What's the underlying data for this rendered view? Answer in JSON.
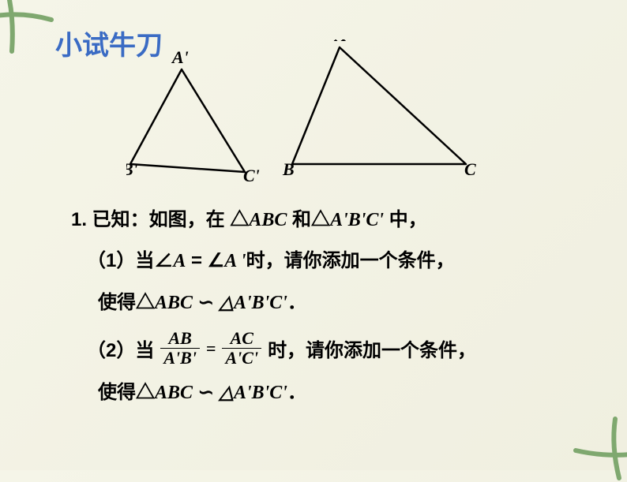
{
  "title": "小试牛刀",
  "triangles": {
    "small": {
      "labels": {
        "A": "A'",
        "B": "B'",
        "C": "C'"
      },
      "points": {
        "A": [
          70,
          38
        ],
        "B": [
          5,
          158
        ],
        "C": [
          150,
          168
        ]
      },
      "labelPos": {
        "A": [
          58,
          30
        ],
        "B": [
          -6,
          172
        ],
        "C": [
          148,
          180
        ]
      }
    },
    "large": {
      "labels": {
        "A": "A",
        "B": "B",
        "C": "C"
      },
      "points": {
        "A": [
          270,
          10
        ],
        "B": [
          210,
          158
        ],
        "C": [
          430,
          158
        ]
      },
      "labelPos": {
        "A": [
          264,
          2
        ],
        "B": [
          198,
          172
        ],
        "C": [
          428,
          172
        ]
      }
    },
    "stroke": "#000000",
    "strokeWidth": 2.5,
    "labelFontSize": 22
  },
  "problem": {
    "intro_prefix": "1. 已知：如图，在 △",
    "intro_abc": "ABC",
    "intro_mid": " 和△",
    "intro_apbpcp": "A'B'C'",
    "intro_suffix": " 中，",
    "q1_prefix": "（1）当∠",
    "q1_aeq": "A",
    "q1_mid": " = ∠",
    "q1_ap": "A '",
    "q1_suffix": "时，请你添加一个条件，",
    "similar_prefix": "使得△",
    "similar_abc": "ABC",
    "similar_sym": " ∽ ",
    "similar_apbpcp": "△A'B'C'",
    "similar_period": "．",
    "q2_prefix": "（2）当",
    "frac1_num": "AB",
    "frac1_den": "A'B'",
    "frac_eq": "=",
    "frac2_num": "AC",
    "frac2_den": "A'C'",
    "q2_suffix": "时，请你添加一个条件，"
  },
  "decor": {
    "color": "#7fa86f",
    "size": 90
  }
}
